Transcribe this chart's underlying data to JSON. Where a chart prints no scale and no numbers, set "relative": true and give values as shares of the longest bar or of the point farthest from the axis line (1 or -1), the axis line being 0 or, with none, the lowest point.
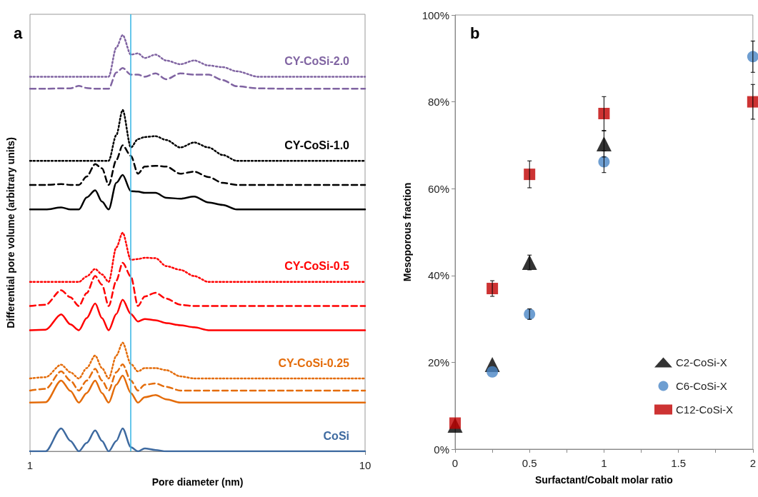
{
  "chart_data": [
    {
      "type": "line",
      "title": "a",
      "xlabel": "Pore diameter (nm)",
      "ylabel": "Differential pore volume (arbitrary units)",
      "relative": true,
      "log": "x",
      "marker": "none",
      "legend": false,
      "grid": false,
      "xlim": [
        1,
        10
      ],
      "xticks": [
        1,
        10
      ],
      "x": [
        1,
        1.113,
        1.239,
        1.32,
        1.399,
        1.476,
        1.565,
        1.64,
        1.717,
        1.81,
        1.89,
        2.0,
        2.1,
        2.2,
        2.37,
        2.55,
        2.81,
        3.09,
        3.41,
        3.76,
        4.14,
        4.8,
        5.82,
        10
      ],
      "series": [
        {
          "name": "CoSi",
          "color": "#3e6aa0",
          "line_style": "solid",
          "values": [
            0,
            0,
            0.055,
            0.025,
            0,
            0.02,
            0.05,
            0.025,
            0,
            0.025,
            0.055,
            0.01,
            0,
            0.007,
            0.003,
            0,
            0,
            0,
            0,
            0,
            0,
            0,
            0,
            0
          ]
        },
        {
          "color": "#e46c0a",
          "line_style": "solid",
          "values": [
            0.117,
            0.118,
            0.17,
            0.145,
            0.117,
            0.14,
            0.17,
            0.14,
            0.117,
            0.16,
            0.182,
            0.14,
            0.117,
            0.13,
            0.135,
            0.125,
            0.117,
            0.117,
            0.117,
            0.117,
            0.117,
            0.117,
            0.117,
            0.117
          ]
        },
        {
          "color": "#e46c0a",
          "line_style": "dashed",
          "values": [
            0.146,
            0.15,
            0.192,
            0.17,
            0.146,
            0.17,
            0.198,
            0.17,
            0.146,
            0.19,
            0.209,
            0.17,
            0.146,
            0.16,
            0.163,
            0.155,
            0.146,
            0.146,
            0.146,
            0.146,
            0.146,
            0.146,
            0.146,
            0.146
          ]
        },
        {
          "name": "CY-CoSi-0.25",
          "color": "#e46c0a",
          "line_style": "dotted",
          "values": [
            0.175,
            0.178,
            0.208,
            0.19,
            0.175,
            0.2,
            0.23,
            0.2,
            0.175,
            0.23,
            0.261,
            0.21,
            0.192,
            0.2,
            0.2,
            0.195,
            0.18,
            0.175,
            0.175,
            0.175,
            0.175,
            0.175,
            0.175,
            0.175
          ]
        },
        {
          "color": "#ff0000",
          "line_style": "solid",
          "values": [
            0.291,
            0.292,
            0.329,
            0.305,
            0.291,
            0.32,
            0.355,
            0.32,
            0.291,
            0.33,
            0.364,
            0.33,
            0.312,
            0.318,
            0.315,
            0.308,
            0.303,
            0.298,
            0.291,
            0.291,
            0.291,
            0.291,
            0.291,
            0.291
          ]
        },
        {
          "color": "#ff0000",
          "line_style": "dashed",
          "values": [
            0.349,
            0.352,
            0.387,
            0.37,
            0.349,
            0.38,
            0.421,
            0.4,
            0.349,
            0.41,
            0.453,
            0.42,
            0.349,
            0.372,
            0.381,
            0.367,
            0.352,
            0.349,
            0.349,
            0.349,
            0.349,
            0.349,
            0.349,
            0.349
          ]
        },
        {
          "name": "CY-CoSi-0.5",
          "color": "#ff0000",
          "line_style": "dotted",
          "values": [
            0.407,
            0.407,
            0.407,
            0.407,
            0.407,
            0.42,
            0.438,
            0.425,
            0.407,
            0.49,
            0.525,
            0.46,
            0.462,
            0.465,
            0.464,
            0.445,
            0.436,
            0.421,
            0.407,
            0.407,
            0.407,
            0.407,
            0.407,
            0.407
          ]
        },
        {
          "color": "#000000",
          "line_style": "solid",
          "values": [
            0.581,
            0.581,
            0.586,
            0.581,
            0.581,
            0.61,
            0.627,
            0.6,
            0.581,
            0.645,
            0.664,
            0.625,
            0.624,
            0.621,
            0.621,
            0.609,
            0.607,
            0.612,
            0.598,
            0.592,
            0.581,
            0.581,
            0.581,
            0.581
          ]
        },
        {
          "color": "#000000",
          "line_style": "dashed",
          "values": [
            0.64,
            0.64,
            0.642,
            0.64,
            0.64,
            0.66,
            0.69,
            0.68,
            0.64,
            0.7,
            0.735,
            0.71,
            0.667,
            0.684,
            0.686,
            0.684,
            0.667,
            0.672,
            0.659,
            0.645,
            0.64,
            0.64,
            0.64,
            0.64
          ]
        },
        {
          "name": "CY-CoSi-1.0",
          "color": "#000000",
          "line_style": "dotted",
          "values": [
            0.698,
            0.698,
            0.698,
            0.698,
            0.698,
            0.698,
            0.698,
            0.698,
            0.698,
            0.76,
            0.82,
            0.73,
            0.75,
            0.755,
            0.757,
            0.748,
            0.73,
            0.742,
            0.73,
            0.712,
            0.698,
            0.698,
            0.698,
            0.698
          ]
        },
        {
          "color": "#8064a2",
          "line_style": "dashed",
          "values": [
            0.871,
            0.871,
            0.872,
            0.872,
            0.878,
            0.873,
            0.871,
            0.871,
            0.871,
            0.91,
            0.921,
            0.905,
            0.905,
            0.9,
            0.908,
            0.894,
            0.908,
            0.905,
            0.905,
            0.892,
            0.877,
            0.872,
            0.871,
            0.871
          ]
        },
        {
          "name": "CY-CoSi-2.0",
          "color": "#8064a2",
          "line_style": "dotted",
          "values": [
            0.9,
            0.9,
            0.9,
            0.9,
            0.9,
            0.9,
            0.9,
            0.9,
            0.9,
            0.97,
            1,
            0.953,
            0.956,
            0.945,
            0.953,
            0.939,
            0.93,
            0.939,
            0.927,
            0.923,
            0.913,
            0.9,
            0.9,
            0.9
          ]
        }
      ],
      "ref_lines": [
        {
          "axis": "x",
          "value": 2.0,
          "color": "#33b5e5"
        }
      ]
    },
    {
      "type": "scatter",
      "title": "b",
      "xlabel": "Surfactant/Cobalt molar ratio",
      "ylabel": "Mesoporous fraction",
      "legend": "bottom right",
      "grid": false,
      "xlim": [
        0,
        2
      ],
      "xticks": [
        0,
        0.5,
        1,
        1.5,
        2
      ],
      "ylim": [
        0,
        100
      ],
      "yticks": [
        {
          "value": 0,
          "label": "0%"
        },
        {
          "value": 20,
          "label": "20%"
        },
        {
          "value": 40,
          "label": "40%"
        },
        {
          "value": 60,
          "label": "60%"
        },
        {
          "value": 80,
          "label": "80%"
        },
        {
          "value": 100,
          "label": "100%"
        }
      ],
      "x": [
        0,
        0.25,
        0.5,
        1,
        2
      ],
      "series": [
        {
          "name": "C2-CoSi-X",
          "color": "#000000",
          "marker": "triangle",
          "values": [
            5.5,
            19.5,
            43.0,
            70.3,
            null
          ],
          "errors": [
            null,
            null,
            1.7,
            3,
            null
          ]
        },
        {
          "name": "C6-CoSi-X",
          "color": "#4a86c5",
          "marker": "circle",
          "values": [
            null,
            17.8,
            31.1,
            66.2,
            90.4
          ],
          "errors": [
            null,
            null,
            1.2,
            2.5,
            3.6
          ]
        },
        {
          "name": "C12-CoSi-X",
          "color": "#c00000",
          "marker": "square",
          "values": [
            6,
            37.0,
            63.3,
            77.3,
            80.0
          ],
          "errors": [
            null,
            1.8,
            3.1,
            3.9,
            4
          ]
        }
      ]
    }
  ]
}
